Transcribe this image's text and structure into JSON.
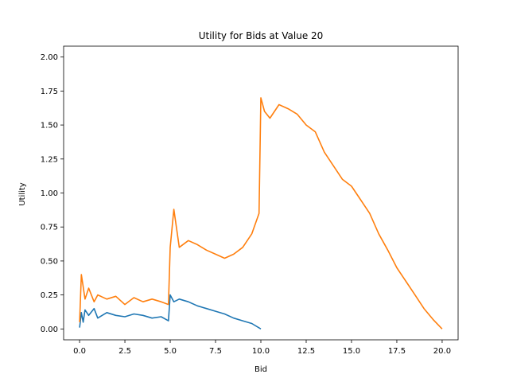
{
  "chart_data": {
    "type": "line",
    "title": "Utility for Bids at Value 20",
    "xlabel": "Bid",
    "ylabel": "Utility",
    "xlim": [
      -0.88,
      20.88
    ],
    "ylim": [
      -0.08,
      2.08
    ],
    "xticks": [
      "0.0",
      "2.5",
      "5.0",
      "7.5",
      "10.0",
      "12.5",
      "15.0",
      "17.5",
      "20.0"
    ],
    "yticks": [
      "0.00",
      "0.25",
      "0.50",
      "0.75",
      "1.00",
      "1.25",
      "1.50",
      "1.75",
      "2.00"
    ],
    "grid": false,
    "legend": "none",
    "series": [
      {
        "color": "#1f77b4",
        "x": [
          0.0,
          0.1,
          0.2,
          0.3,
          0.5,
          0.8,
          1.0,
          1.5,
          2.0,
          2.5,
          3.0,
          3.5,
          4.0,
          4.5,
          4.9,
          5.0,
          5.2,
          5.5,
          6.0,
          6.5,
          7.0,
          7.5,
          8.0,
          8.5,
          9.0,
          9.5,
          10.0
        ],
        "y": [
          0.01,
          0.12,
          0.05,
          0.14,
          0.1,
          0.15,
          0.08,
          0.12,
          0.1,
          0.09,
          0.11,
          0.1,
          0.08,
          0.09,
          0.06,
          0.25,
          0.2,
          0.22,
          0.2,
          0.17,
          0.15,
          0.13,
          0.11,
          0.08,
          0.06,
          0.04,
          0.0
        ]
      },
      {
        "color": "#ff7f0e",
        "x": [
          0.0,
          0.1,
          0.3,
          0.5,
          0.8,
          1.0,
          1.5,
          2.0,
          2.5,
          3.0,
          3.5,
          4.0,
          4.5,
          4.9,
          5.0,
          5.2,
          5.5,
          6.0,
          6.5,
          7.0,
          7.5,
          8.0,
          8.5,
          9.0,
          9.5,
          9.9,
          10.0,
          10.2,
          10.5,
          11.0,
          11.5,
          12.0,
          12.5,
          13.0,
          13.5,
          14.0,
          14.5,
          15.0,
          15.5,
          16.0,
          16.5,
          17.0,
          17.5,
          18.0,
          18.5,
          19.0,
          19.5,
          20.0
        ],
        "y": [
          0.05,
          0.4,
          0.22,
          0.3,
          0.2,
          0.25,
          0.22,
          0.24,
          0.18,
          0.23,
          0.2,
          0.22,
          0.2,
          0.18,
          0.6,
          0.88,
          0.6,
          0.65,
          0.62,
          0.58,
          0.55,
          0.52,
          0.55,
          0.6,
          0.7,
          0.85,
          1.7,
          1.6,
          1.55,
          1.65,
          1.62,
          1.58,
          1.5,
          1.45,
          1.3,
          1.2,
          1.1,
          1.05,
          0.95,
          0.85,
          0.7,
          0.58,
          0.45,
          0.35,
          0.25,
          0.15,
          0.07,
          0.0
        ]
      }
    ]
  }
}
